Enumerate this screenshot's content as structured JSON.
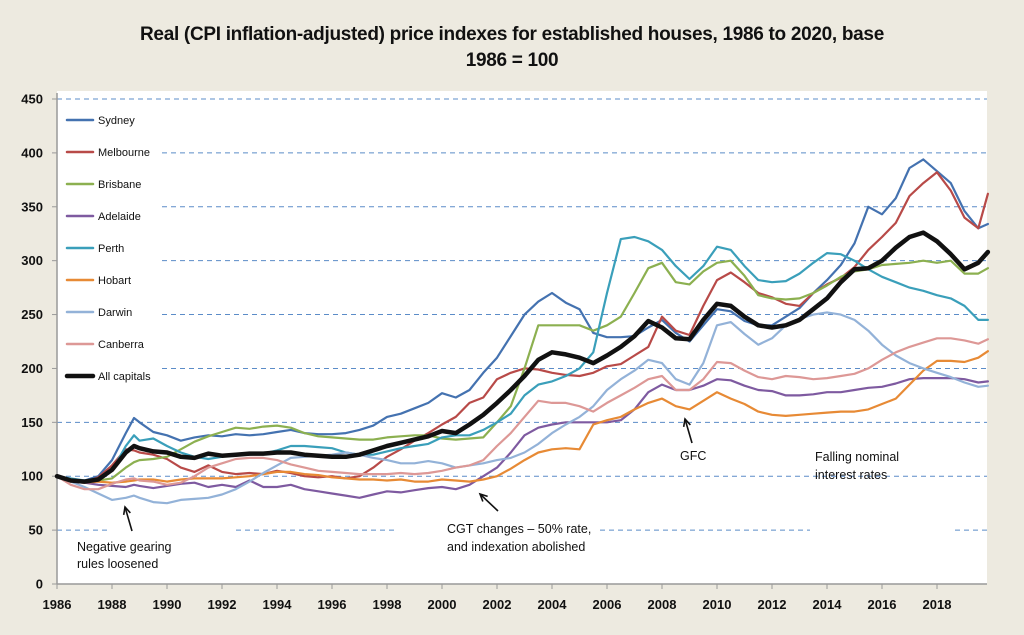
{
  "chart_data": {
    "type": "line",
    "title_line1": "Real (CPI inflation-adjusted) price indexes for established houses, 1986 to 2020, base",
    "title_line2": "1986 = 100",
    "xlabel": "",
    "ylabel": "",
    "xlim": [
      1986,
      2019.85
    ],
    "ylim": [
      0,
      450
    ],
    "yticks": [
      0,
      50,
      100,
      150,
      200,
      250,
      300,
      350,
      400,
      450
    ],
    "xticks": [
      1986,
      1988,
      1990,
      1992,
      1994,
      1996,
      1998,
      2000,
      2002,
      2004,
      2006,
      2008,
      2010,
      2012,
      2014,
      2016,
      2018
    ],
    "grid": true,
    "legend_position": "top-left",
    "x": [
      1986,
      1986.5,
      1987,
      1987.5,
      1988,
      1988.5,
      1988.8,
      1989,
      1989.5,
      1990,
      1990.5,
      1991,
      1991.5,
      1992,
      1992.5,
      1993,
      1993.5,
      1994,
      1994.5,
      1995,
      1995.5,
      1996,
      1996.5,
      1997,
      1997.5,
      1998,
      1998.5,
      1999,
      1999.5,
      2000,
      2000.5,
      2001,
      2001.5,
      2002,
      2002.5,
      2003,
      2003.5,
      2004,
      2004.5,
      2005,
      2005.5,
      2006,
      2006.5,
      2007,
      2007.5,
      2008,
      2008.5,
      2009,
      2009.5,
      2010,
      2010.5,
      2011,
      2011.5,
      2012,
      2012.5,
      2013,
      2013.5,
      2014,
      2014.5,
      2015,
      2015.5,
      2016,
      2016.5,
      2017,
      2017.5,
      2018,
      2018.5,
      2019,
      2019.5,
      2019.85
    ],
    "series": [
      {
        "name": "Sydney",
        "color": "#4472b0",
        "values": [
          100,
          97,
          96,
          100,
          115,
          140,
          154,
          150,
          141,
          138,
          133,
          136,
          138,
          137,
          139,
          138,
          139,
          141,
          143,
          140,
          139,
          139,
          140,
          143,
          147,
          155,
          158,
          163,
          168,
          177,
          173,
          180,
          196,
          210,
          230,
          250,
          262,
          270,
          261,
          255,
          233,
          229,
          229,
          230,
          238,
          245,
          233,
          225,
          240,
          255,
          253,
          244,
          240,
          240,
          248,
          256,
          270,
          282,
          296,
          316,
          350,
          343,
          358,
          386,
          394,
          383,
          372,
          346,
          330,
          334
        ]
      },
      {
        "name": "Melbourne",
        "color": "#b84a48",
        "values": [
          100,
          95,
          94,
          99,
          110,
          125,
          124,
          122,
          120,
          116,
          108,
          104,
          110,
          104,
          102,
          103,
          102,
          105,
          103,
          100,
          99,
          100,
          98,
          100,
          108,
          118,
          125,
          133,
          140,
          148,
          155,
          168,
          173,
          190,
          196,
          200,
          199,
          196,
          194,
          193,
          196,
          202,
          204,
          212,
          220,
          248,
          235,
          231,
          258,
          282,
          289,
          280,
          270,
          266,
          260,
          258,
          270,
          278,
          284,
          294,
          310,
          322,
          335,
          360,
          372,
          382,
          365,
          340,
          330,
          362
        ]
      },
      {
        "name": "Brisbane",
        "color": "#8cb050",
        "values": [
          100,
          96,
          95,
          96,
          98,
          108,
          113,
          115,
          116,
          118,
          125,
          132,
          137,
          141,
          145,
          144,
          146,
          147,
          145,
          140,
          137,
          136,
          135,
          134,
          134,
          136,
          137,
          138,
          138,
          135,
          134,
          135,
          136,
          150,
          165,
          200,
          240,
          240,
          240,
          240,
          235,
          240,
          248,
          270,
          293,
          298,
          280,
          278,
          290,
          298,
          300,
          286,
          268,
          265,
          264,
          265,
          270,
          277,
          285,
          290,
          292,
          296,
          297,
          298,
          300,
          298,
          300,
          288,
          288,
          293
        ]
      },
      {
        "name": "Adelaide",
        "color": "#7e5aa0",
        "values": [
          100,
          95,
          94,
          92,
          91,
          90,
          92,
          91,
          89,
          91,
          93,
          94,
          90,
          92,
          90,
          96,
          90,
          90,
          92,
          88,
          86,
          84,
          82,
          80,
          83,
          86,
          85,
          87,
          89,
          90,
          88,
          92,
          100,
          108,
          122,
          138,
          145,
          148,
          150,
          150,
          150,
          150,
          152,
          162,
          178,
          185,
          180,
          180,
          184,
          190,
          189,
          184,
          180,
          179,
          175,
          175,
          176,
          178,
          178,
          180,
          182,
          183,
          186,
          190,
          191,
          191,
          191,
          190,
          187,
          188
        ]
      },
      {
        "name": "Perth",
        "color": "#3a9fba",
        "values": [
          100,
          98,
          96,
          97,
          105,
          128,
          138,
          133,
          135,
          128,
          122,
          118,
          116,
          118,
          120,
          120,
          121,
          124,
          128,
          128,
          127,
          126,
          122,
          120,
          120,
          123,
          126,
          128,
          130,
          136,
          138,
          138,
          143,
          150,
          158,
          175,
          185,
          188,
          193,
          200,
          215,
          270,
          320,
          322,
          318,
          310,
          295,
          283,
          295,
          313,
          310,
          295,
          282,
          280,
          281,
          288,
          298,
          307,
          306,
          300,
          292,
          285,
          280,
          275,
          272,
          268,
          265,
          258,
          245,
          245
        ]
      },
      {
        "name": "Hobart",
        "color": "#e78a35",
        "values": [
          100,
          95,
          94,
          95,
          94,
          95,
          96,
          97,
          97,
          95,
          97,
          98,
          98,
          98,
          99,
          100,
          102,
          104,
          104,
          102,
          101,
          99,
          98,
          97,
          97,
          96,
          97,
          95,
          95,
          97,
          96,
          95,
          97,
          100,
          107,
          115,
          122,
          125,
          126,
          125,
          148,
          152,
          155,
          162,
          168,
          172,
          165,
          162,
          170,
          178,
          172,
          167,
          160,
          157,
          156,
          157,
          158,
          159,
          160,
          160,
          162,
          167,
          172,
          185,
          198,
          207,
          207,
          206,
          210,
          216
        ]
      },
      {
        "name": "Darwin",
        "color": "#93b2d8",
        "values": [
          100,
          95,
          90,
          84,
          78,
          80,
          82,
          80,
          76,
          75,
          78,
          79,
          80,
          83,
          88,
          95,
          103,
          110,
          117,
          118,
          119,
          120,
          122,
          120,
          117,
          115,
          112,
          112,
          114,
          112,
          108,
          110,
          112,
          115,
          117,
          122,
          130,
          140,
          148,
          155,
          165,
          180,
          190,
          198,
          208,
          205,
          190,
          185,
          205,
          240,
          243,
          232,
          222,
          228,
          240,
          246,
          250,
          252,
          250,
          245,
          235,
          222,
          212,
          205,
          200,
          196,
          192,
          187,
          183,
          184
        ]
      },
      {
        "name": "Canberra",
        "color": "#dd9896",
        "values": [
          100,
          92,
          88,
          88,
          93,
          97,
          98,
          96,
          95,
          92,
          94,
          100,
          108,
          112,
          116,
          117,
          117,
          115,
          111,
          108,
          105,
          104,
          103,
          102,
          102,
          102,
          103,
          102,
          103,
          105,
          108,
          110,
          115,
          128,
          140,
          155,
          170,
          168,
          168,
          165,
          160,
          168,
          175,
          182,
          190,
          193,
          180,
          180,
          190,
          206,
          205,
          198,
          192,
          190,
          193,
          192,
          190,
          191,
          193,
          195,
          200,
          208,
          215,
          220,
          224,
          228,
          228,
          226,
          223,
          227
        ]
      },
      {
        "name": "All capitals",
        "color": "#111111",
        "thick": true,
        "values": [
          100,
          96,
          95,
          97,
          106,
          122,
          128,
          126,
          123,
          122,
          118,
          117,
          121,
          119,
          120,
          121,
          121,
          122,
          122,
          120,
          119,
          118,
          118,
          120,
          124,
          128,
          131,
          134,
          137,
          142,
          140,
          148,
          157,
          168,
          180,
          193,
          208,
          215,
          213,
          210,
          205,
          212,
          220,
          230,
          244,
          238,
          228,
          227,
          245,
          260,
          258,
          248,
          240,
          238,
          240,
          245,
          255,
          265,
          280,
          292,
          293,
          300,
          312,
          322,
          326,
          318,
          306,
          292,
          298,
          308
        ]
      }
    ],
    "annotations": [
      {
        "id": "negative-gearing",
        "line1": "Negative gearing",
        "line2": "rules loosened",
        "x": 1988.5,
        "y": 77
      },
      {
        "id": "cgt",
        "line1": "CGT changes – 50% rate,",
        "line2": "and indexation abolished",
        "x": 2001.3,
        "y": 88
      },
      {
        "id": "gfc",
        "line1": "GFC",
        "line2": "",
        "x": 2008.7,
        "y": 155
      },
      {
        "id": "falling-rates",
        "line1": "Falling nominal",
        "line2": "interest rates",
        "x": null,
        "y": null
      }
    ]
  },
  "colors": {
    "background": "#edeae0",
    "plot": "#ffffff",
    "grid": "#5b8cc8",
    "axis": "#999999"
  }
}
